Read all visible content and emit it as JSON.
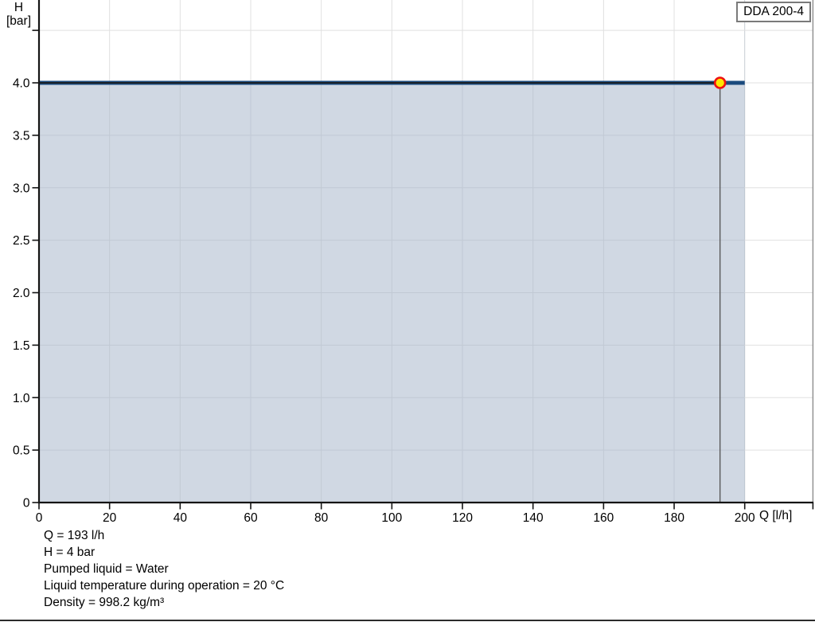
{
  "legend": {
    "label": "DDA 200-4"
  },
  "chart_data": {
    "type": "area",
    "title": "",
    "xlabel": "Q [l/h]",
    "ylabel": "H [bar]",
    "ylabel_lines": [
      "H",
      "[bar]"
    ],
    "xlim": [
      0,
      219
    ],
    "ylim": [
      0,
      4.79
    ],
    "grid": true,
    "legend_position": "top-right",
    "x_ticks": [
      {
        "value": 0,
        "label": "0"
      },
      {
        "value": 20,
        "label": "20"
      },
      {
        "value": 40,
        "label": "40"
      },
      {
        "value": 60,
        "label": "60"
      },
      {
        "value": 80,
        "label": "80"
      },
      {
        "value": 100,
        "label": "100"
      },
      {
        "value": 120,
        "label": "120"
      },
      {
        "value": 140,
        "label": "140"
      },
      {
        "value": 160,
        "label": "160"
      },
      {
        "value": 180,
        "label": "180"
      },
      {
        "value": 200,
        "label": "200"
      }
    ],
    "y_ticks": [
      {
        "value": 0,
        "label": "0"
      },
      {
        "value": 0.5,
        "label": "0.5"
      },
      {
        "value": 1,
        "label": "1.0"
      },
      {
        "value": 1.5,
        "label": "1.5"
      },
      {
        "value": 2,
        "label": "2.0"
      },
      {
        "value": 2.5,
        "label": "2.5"
      },
      {
        "value": 3,
        "label": "3.0"
      },
      {
        "value": 3.5,
        "label": "3.5"
      },
      {
        "value": 4,
        "label": "4.0"
      },
      {
        "value": 4.5,
        "label": ""
      }
    ],
    "series": [
      {
        "name": "DDA 200-4",
        "x": [
          0,
          200
        ],
        "y": [
          4,
          4
        ]
      }
    ],
    "operating_point": {
      "Q": 193,
      "H": 4
    }
  },
  "info_lines": [
    "Q = 193 l/h",
    "H = 4 bar",
    "Pumped liquid = Water",
    "Liquid temperature during operation = 20 °C",
    "Density = 998.2 kg/m³"
  ],
  "colors": {
    "curve_blue": "#1a4a7d",
    "operating_line": "#1c1c1c",
    "operating_vline": "#5a5a5a",
    "area_fill": "rgba(162,178,200,0.5)",
    "marker_fill": "#ffe600",
    "marker_stroke": "#ee1111",
    "gridline": "#e0e0e0",
    "max_flow_gridline": "#c7ccd2",
    "plot_border": "#8c8c8c",
    "axis": "#141414"
  }
}
